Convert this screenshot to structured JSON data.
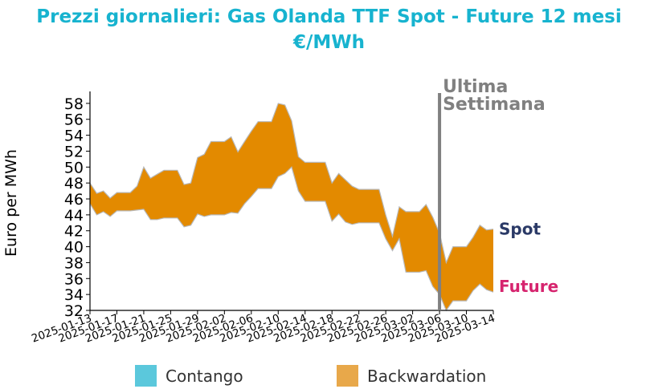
{
  "title_line1": "Prezzi giornalieri: Gas Olanda TTF Spot - Future 12 mesi",
  "title_line2": "€/MWh",
  "chart_data": {
    "type": "area",
    "title": "Prezzi giornalieri: Gas Olanda TTF Spot - Future 12 mesi €/MWh",
    "ylabel": "Euro per MWh",
    "ylim": [
      32,
      59.5
    ],
    "yticks": [
      32,
      34,
      36,
      38,
      40,
      42,
      44,
      46,
      48,
      50,
      52,
      54,
      56,
      58
    ],
    "xlim": [
      "2025-01-13",
      "2025-03-14"
    ],
    "xticks": [
      "2025-01-13",
      "2025-01-17",
      "2025-01-21",
      "2025-01-25",
      "2025-01-29",
      "2025-02-02",
      "2025-02-06",
      "2025-02-10",
      "2025-02-14",
      "2025-02-18",
      "2025-02-22",
      "2025-02-26",
      "2025-03-02",
      "2025-03-06",
      "2025-03-10",
      "2025-03-14"
    ],
    "x": [
      "2025-01-13",
      "2025-01-14",
      "2025-01-15",
      "2025-01-16",
      "2025-01-17",
      "2025-01-18",
      "2025-01-19",
      "2025-01-20",
      "2025-01-21",
      "2025-01-22",
      "2025-01-23",
      "2025-01-24",
      "2025-01-25",
      "2025-01-26",
      "2025-01-27",
      "2025-01-28",
      "2025-01-29",
      "2025-01-30",
      "2025-01-31",
      "2025-02-01",
      "2025-02-02",
      "2025-02-03",
      "2025-02-04",
      "2025-02-05",
      "2025-02-06",
      "2025-02-07",
      "2025-02-08",
      "2025-02-09",
      "2025-02-10",
      "2025-02-11",
      "2025-02-12",
      "2025-02-13",
      "2025-02-14",
      "2025-02-15",
      "2025-02-16",
      "2025-02-17",
      "2025-02-18",
      "2025-02-19",
      "2025-02-20",
      "2025-02-21",
      "2025-02-22",
      "2025-02-23",
      "2025-02-24",
      "2025-02-25",
      "2025-02-26",
      "2025-02-27",
      "2025-02-28",
      "2025-03-01",
      "2025-03-02",
      "2025-03-03",
      "2025-03-04",
      "2025-03-05",
      "2025-03-06",
      "2025-03-07",
      "2025-03-08",
      "2025-03-09",
      "2025-03-10",
      "2025-03-11",
      "2025-03-12",
      "2025-03-13",
      "2025-03-14"
    ],
    "series": [
      {
        "name": "Spot",
        "color": "#2b3a67",
        "values": [
          48.0,
          46.7,
          47.0,
          46.1,
          46.8,
          46.8,
          46.8,
          47.6,
          50.0,
          48.6,
          49.1,
          49.6,
          49.6,
          49.6,
          47.8,
          48.0,
          51.2,
          51.6,
          53.2,
          53.2,
          53.2,
          53.8,
          51.9,
          53.2,
          54.5,
          55.7,
          55.7,
          55.7,
          58.0,
          57.8,
          55.8,
          51.3,
          50.6,
          50.6,
          50.6,
          50.6,
          48.0,
          49.2,
          48.4,
          47.6,
          47.2,
          47.2,
          47.2,
          47.2,
          44.0,
          41.3,
          45.0,
          44.4,
          44.4,
          44.4,
          45.3,
          43.7,
          41.7,
          38.0,
          40.0,
          40.0,
          40.0,
          41.2,
          42.7,
          42.1,
          42.2
        ]
      },
      {
        "name": "Future",
        "color": "#d6246e",
        "values": [
          45.4,
          44.0,
          44.4,
          43.8,
          44.5,
          44.5,
          44.5,
          44.6,
          44.7,
          43.4,
          43.4,
          43.6,
          43.6,
          43.6,
          42.5,
          42.7,
          44.1,
          43.8,
          44.0,
          44.0,
          44.0,
          44.3,
          44.2,
          45.4,
          46.3,
          47.3,
          47.3,
          47.3,
          48.8,
          49.2,
          50.0,
          47.0,
          45.7,
          45.7,
          45.7,
          45.7,
          43.2,
          44.1,
          43.1,
          42.8,
          43.0,
          43.0,
          43.0,
          43.0,
          41.0,
          39.5,
          41.0,
          36.8,
          36.8,
          36.8,
          37.0,
          35.0,
          34.0,
          32.0,
          33.2,
          33.2,
          33.2,
          34.5,
          35.3,
          34.6,
          34.3
        ]
      }
    ],
    "legend": [
      {
        "label": "Contango",
        "color": "#5bc8dc"
      },
      {
        "label": "Backwardation",
        "color": "#e8a84a"
      }
    ],
    "fill_colors": {
      "contango": "#5bc8dc",
      "backwardation": "#e38a00"
    },
    "marker": {
      "date": "2025-03-06",
      "label_line1": "Ultima",
      "label_line2": "Settimana",
      "color": "#808080"
    },
    "legend_position": "bottom",
    "grid": false
  }
}
